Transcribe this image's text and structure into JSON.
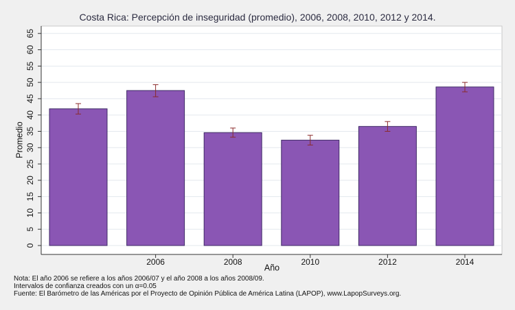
{
  "chart_data": {
    "type": "bar",
    "title": "Costa Rica: Percepción de inseguridad (promedio), 2006, 2008, 2010, 2012 y 2014.",
    "xlabel": "Año",
    "ylabel": "Promedio",
    "categories": [
      "",
      "2006",
      "2008",
      "2010",
      "2012",
      "2014"
    ],
    "values": [
      41.9,
      47.5,
      34.6,
      32.3,
      36.5,
      48.6
    ],
    "error_low": [
      40.3,
      45.6,
      33.2,
      30.8,
      35.0,
      47.1
    ],
    "error_high": [
      43.5,
      49.3,
      36.0,
      33.8,
      38.0,
      50.0
    ],
    "ylim": [
      0,
      66
    ],
    "yticks": [
      0,
      5,
      10,
      15,
      20,
      25,
      30,
      35,
      40,
      45,
      50,
      55,
      60,
      65
    ],
    "grid": true,
    "bar_color": "#8a56b4",
    "bar_edge_color": "#3f2a66",
    "errorbar_color": "#8b2a2a"
  },
  "notes": {
    "line1": "Nota: El año 2006 se refiere a los años 2006/07 y el año 2008 a los años 2008/09.",
    "line2": "Intervalos de confianza creados con un α=0.05",
    "line3": "Fuente: El Barómetro de las Américas por el Proyecto de Opinión Pública de América Latina (LAPOP), www.LapopSurveys.org."
  }
}
